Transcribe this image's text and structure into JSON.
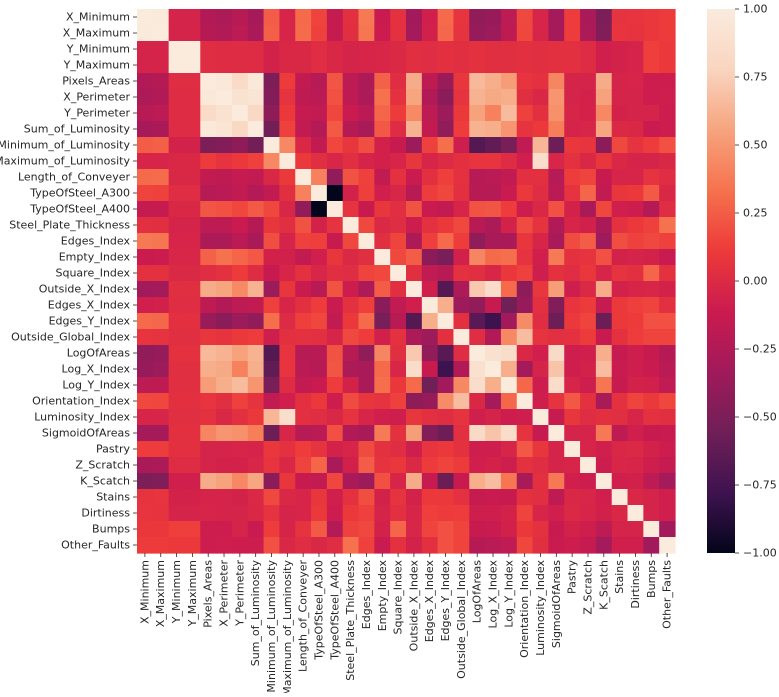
{
  "chart_data": {
    "type": "heatmap",
    "title": "",
    "xlabel": "",
    "ylabel": "",
    "variables": [
      "X_Minimum",
      "X_Maximum",
      "Y_Minimum",
      "Y_Maximum",
      "Pixels_Areas",
      "X_Perimeter",
      "Y_Perimeter",
      "Sum_of_Luminosity",
      "Minimum_of_Luminosity",
      "Maximum_of_Luminosity",
      "Length_of_Conveyer",
      "TypeOfSteel_A300",
      "TypeOfSteel_A400",
      "Steel_Plate_Thickness",
      "Edges_Index",
      "Empty_Index",
      "Square_Index",
      "Outside_X_Index",
      "Edges_X_Index",
      "Edges_Y_Index",
      "Outside_Global_Index",
      "LogOfAreas",
      "Log_X_Index",
      "Log_Y_Index",
      "Orientation_Index",
      "Luminosity_Index",
      "SigmoidOfAreas",
      "Pastry",
      "Z_Scratch",
      "K_Scatch",
      "Stains",
      "Dirtiness",
      "Bumps",
      "Other_Faults"
    ],
    "matrix": [
      [
        1,
        0.99,
        -0.05,
        -0.05,
        -0.25,
        -0.27,
        -0.21,
        -0.3,
        0.25,
        -0.04,
        0.3,
        0.15,
        -0.15,
        0.04,
        0.36,
        -0.12,
        0.05,
        -0.33,
        -0.08,
        0.3,
        0.07,
        -0.41,
        -0.38,
        -0.19,
        0.17,
        -0.04,
        -0.32,
        0.12,
        -0.28,
        -0.5,
        0.06,
        0.07,
        0.09,
        0.11
      ],
      [
        0.99,
        1,
        -0.05,
        -0.05,
        -0.23,
        -0.25,
        -0.19,
        -0.28,
        0.26,
        -0.04,
        0.31,
        0.14,
        -0.14,
        0.03,
        0.35,
        -0.11,
        0.05,
        -0.32,
        -0.07,
        0.29,
        0.06,
        -0.39,
        -0.36,
        -0.18,
        0.16,
        -0.04,
        -0.3,
        0.12,
        -0.27,
        -0.48,
        0.07,
        0.06,
        0.09,
        0.11
      ],
      [
        -0.05,
        -0.05,
        1,
        1,
        0.02,
        0.01,
        0.01,
        0.01,
        -0.06,
        -0.02,
        -0.02,
        0.02,
        -0.02,
        -0.05,
        -0.04,
        -0.03,
        -0.01,
        0.03,
        0.02,
        0.04,
        0.03,
        0.05,
        0.03,
        0.03,
        0.04,
        0.03,
        0.04,
        0.04,
        0.01,
        -0.08,
        -0.06,
        -0.05,
        0.13,
        0.1
      ],
      [
        -0.05,
        -0.05,
        1,
        1,
        0.02,
        0.01,
        0.01,
        0.01,
        -0.06,
        -0.02,
        -0.02,
        0.02,
        -0.02,
        -0.05,
        -0.04,
        -0.03,
        -0.01,
        0.03,
        0.02,
        0.04,
        0.03,
        0.05,
        0.03,
        0.03,
        0.04,
        0.03,
        0.04,
        0.04,
        0.01,
        -0.08,
        -0.06,
        -0.05,
        0.13,
        0.1
      ],
      [
        -0.25,
        -0.23,
        0.02,
        0.02,
        1,
        0.97,
        0.84,
        0.97,
        -0.5,
        0.11,
        -0.16,
        -0.22,
        0.22,
        -0.19,
        -0.27,
        0.27,
        0.02,
        0.59,
        -0.18,
        -0.37,
        0.08,
        0.65,
        0.6,
        0.52,
        0.07,
        0.05,
        0.42,
        -0.05,
        -0.05,
        0.59,
        -0.05,
        -0.04,
        -0.1,
        -0.1
      ],
      [
        -0.27,
        -0.25,
        0.01,
        0.01,
        0.97,
        1,
        0.91,
        0.93,
        -0.47,
        0.06,
        -0.18,
        -0.2,
        0.2,
        -0.18,
        -0.27,
        0.33,
        0.05,
        0.56,
        -0.25,
        -0.44,
        0.06,
        0.62,
        0.58,
        0.6,
        0.03,
        -0.02,
        0.49,
        -0.05,
        -0.06,
        0.55,
        -0.05,
        -0.05,
        -0.1,
        -0.09
      ],
      [
        -0.21,
        -0.19,
        0.01,
        0.01,
        0.84,
        0.91,
        1,
        0.81,
        -0.42,
        0.1,
        -0.14,
        -0.16,
        0.16,
        -0.12,
        -0.2,
        0.28,
        0.11,
        0.44,
        -0.19,
        -0.36,
        0.1,
        0.55,
        0.4,
        0.66,
        0.14,
        0.04,
        0.47,
        -0.04,
        -0.06,
        0.43,
        -0.06,
        -0.05,
        -0.05,
        -0.1
      ],
      [
        -0.3,
        -0.28,
        0.01,
        0.01,
        0.97,
        0.93,
        0.81,
        1,
        -0.54,
        0.14,
        -0.16,
        -0.24,
        0.24,
        -0.23,
        -0.29,
        0.23,
        0.01,
        0.62,
        -0.16,
        -0.41,
        0.12,
        0.62,
        0.6,
        0.49,
        0.06,
        0.1,
        0.39,
        -0.05,
        -0.03,
        0.57,
        -0.01,
        -0.02,
        -0.12,
        -0.1
      ],
      [
        0.25,
        0.26,
        -0.06,
        -0.06,
        -0.5,
        -0.47,
        -0.42,
        -0.54,
        1,
        0.43,
        -0.02,
        -0.16,
        0.16,
        0.08,
        0.19,
        -0.07,
        -0.13,
        -0.36,
        0.14,
        0.32,
        -0.09,
        -0.68,
        -0.62,
        -0.52,
        -0.17,
        0.64,
        -0.57,
        0.09,
        0.07,
        -0.43,
        0.17,
        0.06,
        0.12,
        0.2
      ],
      [
        -0.04,
        -0.04,
        -0.02,
        -0.02,
        0.11,
        0.06,
        0.1,
        0.14,
        0.43,
        1,
        0.1,
        0.03,
        -0.03,
        0.03,
        -0.05,
        -0.07,
        -0.04,
        0.08,
        -0.04,
        0,
        0.04,
        0.07,
        0.07,
        0.01,
        -0.08,
        0.87,
        -0.03,
        0.05,
        -0.02,
        0.08,
        -0.02,
        -0.05,
        -0.05,
        -0.02
      ],
      [
        0.3,
        0.31,
        -0.02,
        -0.02,
        -0.16,
        -0.18,
        -0.14,
        -0.16,
        -0.02,
        0.1,
        1,
        0.4,
        -0.4,
        0.21,
        0.14,
        -0.16,
        0.05,
        -0.12,
        0.04,
        0.13,
        0.05,
        -0.22,
        -0.2,
        -0.16,
        0.04,
        0.04,
        -0.22,
        0.12,
        0.15,
        -0.13,
        -0.04,
        -0.04,
        0.06,
        0.02
      ],
      [
        0.15,
        0.14,
        0.02,
        0.02,
        -0.22,
        -0.2,
        -0.16,
        -0.24,
        -0.16,
        0.03,
        0.4,
        1,
        -1,
        -0.06,
        0.13,
        -0.08,
        -0.03,
        -0.21,
        0.12,
        0.16,
        0.04,
        -0.21,
        -0.22,
        -0.12,
        0.1,
        0.02,
        -0.2,
        0.06,
        0.28,
        -0.16,
        0.08,
        0.1,
        0.24,
        -0.02
      ],
      [
        -0.15,
        -0.14,
        -0.02,
        -0.02,
        0.22,
        0.2,
        0.16,
        0.24,
        0.16,
        -0.03,
        -0.4,
        -1,
        1,
        0.06,
        -0.13,
        0.08,
        0.03,
        0.21,
        -0.12,
        -0.16,
        -0.04,
        0.21,
        0.22,
        0.12,
        -0.1,
        -0.02,
        0.2,
        -0.06,
        -0.28,
        0.16,
        -0.08,
        -0.1,
        -0.24,
        0.02
      ],
      [
        0.04,
        0.03,
        -0.05,
        -0.05,
        -0.19,
        -0.18,
        -0.12,
        -0.23,
        0.08,
        0.03,
        0.21,
        -0.06,
        0.06,
        1,
        0.17,
        -0.01,
        0.02,
        -0.1,
        0.05,
        0.1,
        0.17,
        -0.21,
        -0.27,
        -0.06,
        0.18,
        0.06,
        -0.25,
        -0.04,
        -0.07,
        -0.28,
        0.05,
        0.1,
        0.14,
        0.33
      ],
      [
        0.36,
        0.35,
        -0.04,
        -0.04,
        -0.27,
        -0.27,
        -0.2,
        -0.29,
        0.19,
        -0.05,
        0.14,
        0.13,
        -0.13,
        0.17,
        1,
        0.03,
        0.15,
        -0.27,
        0.13,
        0.3,
        0.12,
        -0.41,
        -0.29,
        -0.28,
        0.08,
        -0.04,
        -0.29,
        0.18,
        0.25,
        -0.35,
        0.19,
        0.14,
        0.17,
        0.14
      ],
      [
        -0.12,
        -0.11,
        -0.03,
        -0.03,
        0.27,
        0.33,
        0.28,
        0.23,
        -0.07,
        -0.07,
        -0.16,
        -0.08,
        0.08,
        -0.01,
        0.03,
        1,
        0.17,
        0.25,
        -0.43,
        -0.52,
        -0.07,
        0.42,
        0.3,
        0.32,
        0.06,
        -0.08,
        0.37,
        0.05,
        0.06,
        0.2,
        -0.06,
        -0.05,
        -0.06,
        -0.12
      ],
      [
        0.05,
        0.05,
        -0.01,
        -0.01,
        0.02,
        0.05,
        0.11,
        0.01,
        -0.13,
        -0.04,
        0.05,
        -0.03,
        0.03,
        0.02,
        0.15,
        0.17,
        1,
        0.03,
        -0.17,
        -0.21,
        0.05,
        0.03,
        -0.03,
        0.09,
        0.14,
        -0.09,
        0.05,
        0.02,
        0.09,
        -0.04,
        0.06,
        0.04,
        0.28,
        0.05
      ],
      [
        -0.33,
        -0.32,
        0.03,
        0.03,
        0.59,
        0.56,
        0.44,
        0.62,
        -0.36,
        0.08,
        -0.12,
        -0.21,
        0.21,
        -0.1,
        -0.27,
        0.25,
        0.03,
        1,
        -0.08,
        -0.68,
        -0.27,
        0.72,
        0.85,
        0.3,
        -0.42,
        0.08,
        0.53,
        -0.09,
        -0.01,
        0.59,
        -0.06,
        -0.04,
        -0.03,
        -0.06
      ],
      [
        -0.08,
        -0.07,
        0.02,
        0.02,
        -0.18,
        -0.25,
        -0.19,
        -0.16,
        0.14,
        -0.04,
        0.04,
        0.12,
        -0.12,
        0.05,
        0.13,
        -0.43,
        -0.17,
        -0.08,
        1,
        0.6,
        -0.35,
        -0.4,
        -0.13,
        -0.55,
        -0.38,
        0.04,
        -0.48,
        0.07,
        0.11,
        -0.14,
        0.1,
        0.13,
        0.15,
        0.04
      ],
      [
        0.3,
        0.29,
        0.04,
        0.04,
        -0.37,
        -0.44,
        -0.36,
        -0.41,
        0.32,
        0,
        0.13,
        0.16,
        -0.16,
        0.1,
        0.3,
        -0.52,
        -0.21,
        -0.68,
        0.6,
        1,
        0.04,
        -0.66,
        -0.78,
        -0.33,
        0.45,
        0.02,
        -0.57,
        0.1,
        0.15,
        -0.58,
        0.1,
        0.11,
        0.2,
        0.2
      ],
      [
        0.07,
        0.06,
        0.03,
        0.03,
        0.08,
        0.06,
        0.1,
        0.12,
        -0.09,
        0.04,
        0.05,
        0.04,
        -0.04,
        0.17,
        0.12,
        -0.07,
        0.05,
        -0.27,
        -0.35,
        0.04,
        1,
        0.02,
        -0.25,
        0.43,
        0.67,
        0.06,
        0.04,
        0.05,
        0.11,
        -0.13,
        0.05,
        0.12,
        0.15,
        0.15
      ],
      [
        -0.41,
        -0.39,
        0.05,
        0.05,
        0.65,
        0.62,
        0.55,
        0.62,
        -0.68,
        0.07,
        -0.22,
        -0.21,
        0.21,
        -0.21,
        -0.41,
        0.42,
        0.03,
        0.72,
        -0.4,
        -0.66,
        0.02,
        1,
        0.89,
        0.86,
        -0.02,
        -0.08,
        0.83,
        -0.09,
        -0.08,
        0.6,
        -0.14,
        -0.09,
        -0.13,
        -0.23
      ],
      [
        -0.38,
        -0.36,
        0.03,
        0.03,
        0.6,
        0.58,
        0.4,
        0.6,
        -0.62,
        0.07,
        -0.2,
        -0.22,
        0.22,
        -0.27,
        -0.29,
        0.3,
        -0.03,
        0.85,
        -0.13,
        -0.78,
        -0.25,
        0.89,
        1,
        0.6,
        -0.32,
        -0.05,
        0.7,
        -0.09,
        -0.06,
        0.67,
        -0.12,
        -0.09,
        -0.12,
        -0.2
      ],
      [
        -0.19,
        -0.18,
        0.03,
        0.03,
        0.52,
        0.6,
        0.66,
        0.49,
        -0.52,
        0.01,
        -0.16,
        -0.12,
        0.12,
        -0.06,
        -0.28,
        0.32,
        0.09,
        0.3,
        -0.55,
        -0.33,
        0.43,
        0.86,
        0.6,
        1,
        0.29,
        -0.1,
        0.85,
        -0.04,
        -0.09,
        0.35,
        -0.13,
        -0.06,
        -0.07,
        -0.17
      ],
      [
        0.17,
        0.16,
        0.04,
        0.04,
        0.07,
        0.03,
        0.14,
        0.06,
        -0.17,
        -0.08,
        0.04,
        0.1,
        -0.1,
        0.18,
        0.08,
        0.06,
        0.14,
        -0.42,
        -0.38,
        0.45,
        0.67,
        -0.02,
        -0.32,
        0.29,
        1,
        -0.09,
        0.06,
        0.23,
        0.05,
        -0.29,
        0.05,
        0.15,
        0.1,
        0.16
      ],
      [
        -0.04,
        -0.04,
        0.03,
        0.03,
        0.05,
        -0.02,
        0.04,
        0.1,
        0.64,
        0.87,
        0.04,
        0.02,
        -0.02,
        0.06,
        -0.04,
        -0.08,
        -0.09,
        0.08,
        0.04,
        0.02,
        0.06,
        -0.08,
        -0.05,
        -0.1,
        -0.09,
        1,
        -0.14,
        0.08,
        0.02,
        0.04,
        0.03,
        -0.04,
        0.05,
        0.03
      ],
      [
        -0.32,
        -0.3,
        0.04,
        0.04,
        0.42,
        0.49,
        0.47,
        0.39,
        -0.57,
        -0.03,
        -0.22,
        -0.2,
        0.2,
        -0.25,
        -0.29,
        0.37,
        0.05,
        0.53,
        -0.48,
        -0.57,
        0.04,
        0.83,
        0.7,
        0.85,
        0.06,
        -0.14,
        1,
        -0.05,
        -0.05,
        0.36,
        -0.18,
        -0.08,
        -0.13,
        -0.12
      ],
      [
        0.12,
        0.12,
        0.04,
        0.04,
        -0.05,
        -0.05,
        -0.04,
        -0.05,
        0.09,
        0.05,
        0.12,
        0.06,
        -0.06,
        -0.04,
        0.18,
        0.05,
        0.02,
        -0.09,
        0.07,
        0.1,
        0.05,
        -0.09,
        -0.09,
        -0.04,
        0.23,
        0.08,
        -0.05,
        1,
        -0.04,
        -0.08,
        -0.02,
        -0.01,
        -0.06,
        -0.1
      ],
      [
        -0.28,
        -0.27,
        0.01,
        0.01,
        -0.05,
        -0.06,
        -0.06,
        -0.03,
        0.07,
        -0.02,
        0.15,
        0.28,
        -0.28,
        -0.07,
        0.25,
        0.06,
        0.09,
        -0.01,
        0.11,
        0.15,
        0.11,
        -0.08,
        -0.06,
        -0.09,
        0.05,
        0.02,
        -0.05,
        -0.04,
        1,
        -0.1,
        -0.03,
        -0.04,
        -0.09,
        -0.14
      ],
      [
        -0.5,
        -0.48,
        -0.08,
        -0.08,
        0.59,
        0.55,
        0.43,
        0.57,
        -0.43,
        0.08,
        -0.13,
        -0.16,
        0.16,
        -0.28,
        -0.35,
        0.2,
        -0.04,
        0.59,
        -0.14,
        -0.58,
        -0.13,
        0.6,
        0.67,
        0.35,
        -0.29,
        0.04,
        0.36,
        -0.08,
        -0.1,
        1,
        -0.08,
        -0.07,
        -0.19,
        -0.31
      ],
      [
        0.06,
        0.07,
        -0.06,
        -0.06,
        -0.05,
        -0.05,
        -0.06,
        -0.01,
        0.17,
        -0.02,
        -0.04,
        0.08,
        -0.08,
        0.05,
        0.19,
        -0.06,
        0.06,
        -0.06,
        0.1,
        0.1,
        0.05,
        -0.14,
        -0.12,
        -0.13,
        0.05,
        0.03,
        -0.18,
        -0.02,
        -0.03,
        -0.08,
        1,
        -0.02,
        -0.05,
        -0.08
      ],
      [
        0.07,
        0.06,
        -0.05,
        -0.05,
        -0.04,
        -0.05,
        -0.05,
        -0.02,
        0.06,
        -0.05,
        -0.04,
        0.1,
        -0.1,
        0.1,
        0.14,
        -0.05,
        0.04,
        -0.04,
        0.13,
        0.11,
        0.12,
        -0.09,
        -0.09,
        -0.06,
        0.15,
        -0.04,
        -0.08,
        -0.01,
        -0.04,
        -0.07,
        -0.02,
        1,
        -0.05,
        -0.08
      ],
      [
        0.09,
        0.09,
        0.13,
        0.13,
        -0.1,
        -0.1,
        -0.05,
        -0.12,
        0.12,
        -0.05,
        0.06,
        0.24,
        -0.24,
        0.14,
        0.17,
        -0.06,
        0.28,
        -0.03,
        0.15,
        0.2,
        0.15,
        -0.13,
        -0.12,
        -0.07,
        0.1,
        0.05,
        -0.13,
        -0.06,
        -0.09,
        -0.19,
        -0.05,
        -0.05,
        1,
        -0.33
      ],
      [
        0.11,
        0.11,
        0.1,
        0.1,
        -0.1,
        -0.09,
        -0.1,
        -0.1,
        0.2,
        -0.02,
        0.02,
        -0.02,
        0.02,
        0.33,
        0.14,
        -0.12,
        0.05,
        -0.06,
        0.04,
        0.2,
        0.15,
        -0.23,
        -0.2,
        -0.17,
        0.16,
        0.03,
        -0.12,
        -0.1,
        -0.14,
        -0.31,
        -0.08,
        -0.08,
        -0.33,
        1
      ]
    ],
    "colorbar": {
      "min": -1.0,
      "max": 1.0,
      "ticks": [
        "1.00",
        "0.75",
        "0.50",
        "0.25",
        "0.00",
        "−0.25",
        "−0.50",
        "−0.75",
        "−1.00"
      ],
      "tick_values": [
        1.0,
        0.75,
        0.5,
        0.25,
        0.0,
        -0.25,
        -0.5,
        -0.75,
        -1.0
      ],
      "colormap": "rocket",
      "color_stops": [
        "#03051a",
        "#3e1350",
        "#701f57",
        "#a11a5b",
        "#cb1b4f",
        "#ed3a3a",
        "#f6724e",
        "#f6a47e",
        "#f9d5c0",
        "#faebdd"
      ]
    },
    "grid": false,
    "legend": "colorbar-right"
  }
}
